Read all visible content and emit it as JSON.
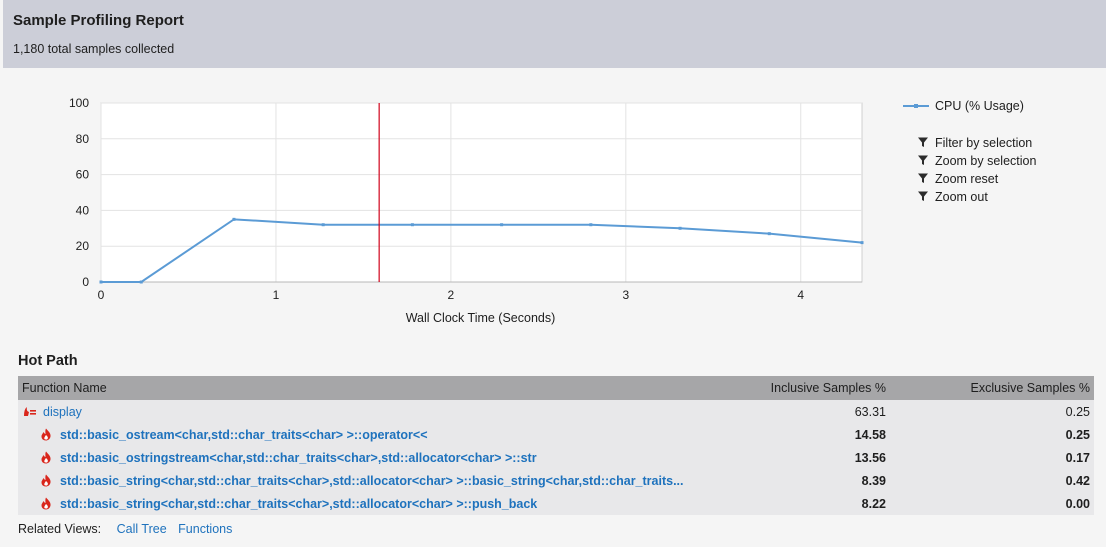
{
  "header": {
    "title": "Sample Profiling Report",
    "subtitle": "1,180 total samples collected"
  },
  "chart_data": {
    "type": "line",
    "xlabel": "Wall Clock Time (Seconds)",
    "ylabel": "",
    "xlim": [
      0,
      4.35
    ],
    "ylim": [
      0,
      100
    ],
    "xticks": [
      0,
      1,
      2,
      3,
      4
    ],
    "yticks": [
      0,
      20,
      40,
      60,
      80,
      100
    ],
    "grid": true,
    "legend_position": "right",
    "selection_marker_x": 1.59,
    "series": [
      {
        "name": "CPU (% Usage)",
        "color": "#5b9bd5",
        "x": [
          0,
          0.23,
          0.76,
          1.27,
          1.78,
          2.29,
          2.8,
          3.31,
          3.82,
          4.35
        ],
        "y": [
          0,
          0,
          35,
          32,
          32,
          32,
          32,
          30,
          27,
          22
        ]
      }
    ]
  },
  "chart_actions": [
    {
      "label": "Filter by selection",
      "icon": "filter-icon"
    },
    {
      "label": "Zoom by selection",
      "icon": "filter-icon"
    },
    {
      "label": "Zoom reset",
      "icon": "filter-icon"
    },
    {
      "label": "Zoom out",
      "icon": "filter-icon"
    }
  ],
  "hot_path": {
    "title": "Hot Path",
    "columns": {
      "name": "Function Name",
      "inclusive": "Inclusive Samples %",
      "exclusive": "Exclusive Samples %"
    },
    "rows": [
      {
        "name": "display",
        "inclusive": "63.31",
        "exclusive": "0.25",
        "icon": "hot-path-root-icon"
      },
      {
        "name": "std::basic_ostream<char,std::char_traits<char> >::operator<<",
        "inclusive": "14.58",
        "exclusive": "0.25",
        "icon": "flame-icon"
      },
      {
        "name": "std::basic_ostringstream<char,std::char_traits<char>,std::allocator<char> >::str",
        "inclusive": "13.56",
        "exclusive": "0.17",
        "icon": "flame-icon"
      },
      {
        "name": "std::basic_string<char,std::char_traits<char>,std::allocator<char> >::basic_string<char,std::char_traits...",
        "inclusive": "8.39",
        "exclusive": "0.42",
        "icon": "flame-icon"
      },
      {
        "name": "std::basic_string<char,std::char_traits<char>,std::allocator<char> >::push_back",
        "inclusive": "8.22",
        "exclusive": "0.00",
        "icon": "flame-icon"
      }
    ]
  },
  "related_views": {
    "label": "Related Views:",
    "links": [
      "Call Tree",
      "Functions"
    ]
  }
}
